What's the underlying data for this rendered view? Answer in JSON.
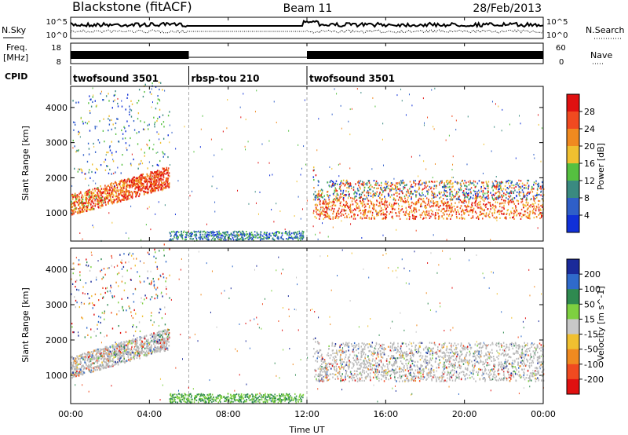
{
  "header": {
    "station": "Blackstone (fitACF)",
    "beam": "Beam 11",
    "date": "28/Feb/2013"
  },
  "side_labels": {
    "nsky": "N.Sky",
    "freq": "Freq.",
    "freq_unit": "[MHz]",
    "cpid": "CPID",
    "nsearch": "N.Search",
    "nave": "Nave"
  },
  "noise_axis": {
    "left_top": "10^5",
    "left_bottom": "10^0",
    "right_top": "10^5",
    "right_bottom": "10^0"
  },
  "freq_axis": {
    "left_top": "18",
    "left_bottom": "8",
    "right_top": "60",
    "right_bottom": "0"
  },
  "cpid_segments": [
    {
      "label": "twofsound 3501",
      "start_hour": 0
    },
    {
      "label": "rbsp-tou 210",
      "start_hour": 6
    },
    {
      "label": "twofsound 3501",
      "start_hour": 12
    }
  ],
  "colors": {
    "noise": "#000000",
    "power_scale": [
      "#1030d8",
      "#2f5fc8",
      "#3a8a80",
      "#55c040",
      "#f0c030",
      "#f08a20",
      "#f04a20",
      "#e01010"
    ],
    "velocity_scale": [
      "#1a2a9a",
      "#2f6acb",
      "#2f8a50",
      "#7ed040",
      "#c8c8c8",
      "#f0c030",
      "#f08a20",
      "#f04a20",
      "#e01010"
    ],
    "ground_scatter": "#b8b8b8"
  },
  "chart_data": [
    {
      "type": "heatmap",
      "name": "power-panel",
      "ylabel": "Slant Range [km]",
      "yticks": [
        1000,
        2000,
        3000,
        4000
      ],
      "ylim": [
        200,
        4600
      ],
      "xlim": [
        0,
        24
      ],
      "colorbar_label": "Power [dB]",
      "colorbar_ticks": [
        "4",
        "8",
        "12",
        "16",
        "20",
        "24",
        "28"
      ],
      "colorbar_range": [
        0,
        32
      ]
    },
    {
      "type": "heatmap",
      "name": "velocity-panel",
      "ylabel": "Slant Range [km]",
      "yticks": [
        1000,
        2000,
        3000,
        4000
      ],
      "ylim": [
        200,
        4600
      ],
      "xlim": [
        0,
        24
      ],
      "colorbar_label": "Velocity [m s^-1]",
      "colorbar_ticks": [
        "200",
        "100",
        "50",
        "15",
        "-15",
        "-50",
        "-100",
        "-200"
      ]
    }
  ],
  "xaxis": {
    "ticks": [
      "00:00",
      "04:00",
      "08:00",
      "12:00",
      "16:00",
      "20:00",
      "00:00"
    ],
    "tick_hours": [
      0,
      4,
      8,
      12,
      16,
      20,
      24
    ],
    "label": "Time UT",
    "dashed_hours": [
      6,
      12
    ]
  }
}
